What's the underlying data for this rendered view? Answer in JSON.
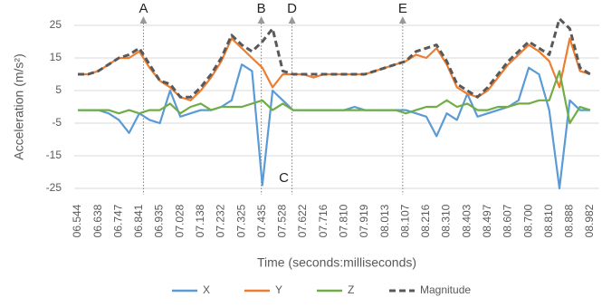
{
  "chart_data": {
    "type": "line",
    "ylabel": "Acceleration (m/s²)",
    "xlabel": "Time (seconds:milliseconds)",
    "categories": [
      "06.544",
      null,
      "06.638",
      null,
      "06.747",
      null,
      "06.841",
      null,
      "06.935",
      null,
      "07.028",
      null,
      "07.138",
      null,
      "07.232",
      null,
      "07.325",
      null,
      "07.435",
      null,
      "07.528",
      null,
      "07.622",
      null,
      "07.716",
      null,
      "07.810",
      null,
      "07.919",
      null,
      "08.013",
      null,
      "08.107",
      null,
      "08.216",
      null,
      "08.310",
      null,
      "08.403",
      null,
      "08.497",
      null,
      "08.607",
      null,
      "08.700",
      null,
      "08.810",
      null,
      "08.888",
      null,
      "08.982"
    ],
    "series": [
      {
        "name": "X",
        "color": "#5b9bd5",
        "values": [
          -1,
          -1,
          -1,
          -2,
          -4,
          -8,
          -2,
          -4,
          -5,
          5,
          -3,
          -2,
          -1,
          -1,
          0,
          2,
          13,
          11,
          -24,
          5,
          2,
          -1,
          -1,
          -1,
          -1,
          -1,
          -1,
          0,
          -1,
          -1,
          -1,
          -1,
          -1,
          -2,
          -3,
          -9,
          -2,
          -4,
          4,
          -3,
          -2,
          -1,
          0,
          2,
          12,
          10,
          -1,
          -25,
          2,
          -1,
          -1
        ]
      },
      {
        "name": "Y",
        "color": "#ed7d31",
        "values": [
          10,
          10,
          11,
          13,
          15,
          15,
          17,
          12,
          8,
          6,
          3,
          2,
          5,
          9,
          14,
          21,
          18,
          15,
          12,
          6,
          10,
          10,
          10,
          9,
          10,
          10,
          10,
          10,
          10,
          11,
          12,
          13,
          14,
          16,
          15,
          18,
          13,
          6,
          4,
          3,
          5,
          9,
          13,
          16,
          19,
          17,
          14,
          6,
          21,
          11,
          10
        ]
      },
      {
        "name": "Z",
        "color": "#70ad47",
        "values": [
          -1,
          -1,
          -1,
          -1,
          -2,
          -1,
          -2,
          -1,
          -1,
          1,
          -2,
          0,
          1,
          -1,
          0,
          0,
          0,
          1,
          2,
          -1,
          1,
          -1,
          -1,
          -1,
          -1,
          -1,
          -1,
          -1,
          -1,
          -1,
          -1,
          -1,
          -2,
          -1,
          0,
          0,
          2,
          0,
          1,
          -1,
          -1,
          0,
          0,
          1,
          1,
          2,
          2,
          11,
          -5,
          0,
          -1
        ]
      },
      {
        "name": "Magnitude",
        "color": "#595959",
        "dashed": true,
        "values": [
          10,
          10,
          11,
          13,
          15,
          16,
          18,
          13,
          8,
          7,
          3,
          3,
          6,
          10,
          15,
          22,
          19,
          17,
          20,
          24,
          11,
          10,
          10,
          10,
          10,
          10,
          10,
          10,
          10,
          11,
          12,
          13,
          14,
          17,
          18,
          19,
          14,
          7,
          5,
          3,
          6,
          10,
          14,
          17,
          20,
          18,
          16,
          27,
          24,
          12,
          10
        ]
      }
    ],
    "ylim": [
      -25,
      25
    ],
    "yticks": [
      25,
      15,
      5,
      -5,
      -15,
      -25
    ],
    "grid": true,
    "legend": "bottom",
    "annotations": [
      "A",
      "B",
      "C",
      "D",
      "E"
    ]
  }
}
